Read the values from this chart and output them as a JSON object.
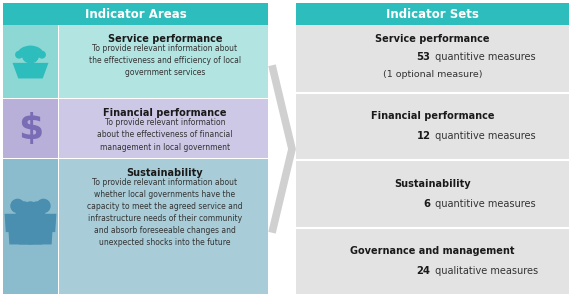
{
  "title_left": "Indicator Areas",
  "title_right": "Indicator Sets",
  "header_color": "#2ebdbd",
  "header_text_color": "#ffffff",
  "rows_left": [
    {
      "icon_color": "#2ebdbd",
      "bg_icon": "#8dd8d4",
      "bg_text": "#b2e4e1",
      "title": "Service performance",
      "desc": "To provide relevant information about\nthe effectiveness and efficiency of local\ngovernment services"
    },
    {
      "icon_color": "#7b6db5",
      "bg_icon": "#b8b0d8",
      "bg_text": "#cdc8e6",
      "title": "Financial performance",
      "desc": "To provide relevant information\nabout the effectiveness of financial\nmanagement in local government"
    },
    {
      "icon_color": "#4a8eb0",
      "bg_icon": "#8bbcce",
      "bg_text": "#a8cdd8",
      "title": "Sustainability",
      "desc": "To provide relevant information about\nwhether local governments have the\ncapacity to meet the agreed service and\ninfrastructure needs of their community\nand absorb foreseeable changes and\nunexpected shocks into the future"
    }
  ],
  "rows_right": [
    {
      "title": "Service performance",
      "line1": "53 quantitive measures",
      "line2": "(1 optional measure)",
      "bg_color": "#e3e3e3"
    },
    {
      "title": "Financial performance",
      "line1": "12 quantitive measures",
      "line2": "",
      "bg_color": "#e3e3e3"
    },
    {
      "title": "Sustainability",
      "line1": "6 quantitive measures",
      "line2": "",
      "bg_color": "#e3e3e3"
    },
    {
      "title": "Governance and management",
      "line1": "24 qualitative measures",
      "line2": "",
      "bg_color": "#e3e3e3"
    }
  ],
  "arrow_color": "#d0d0d0",
  "text_color": "#333333",
  "bold_color": "#1a1a1a",
  "bg_white": "#ffffff"
}
